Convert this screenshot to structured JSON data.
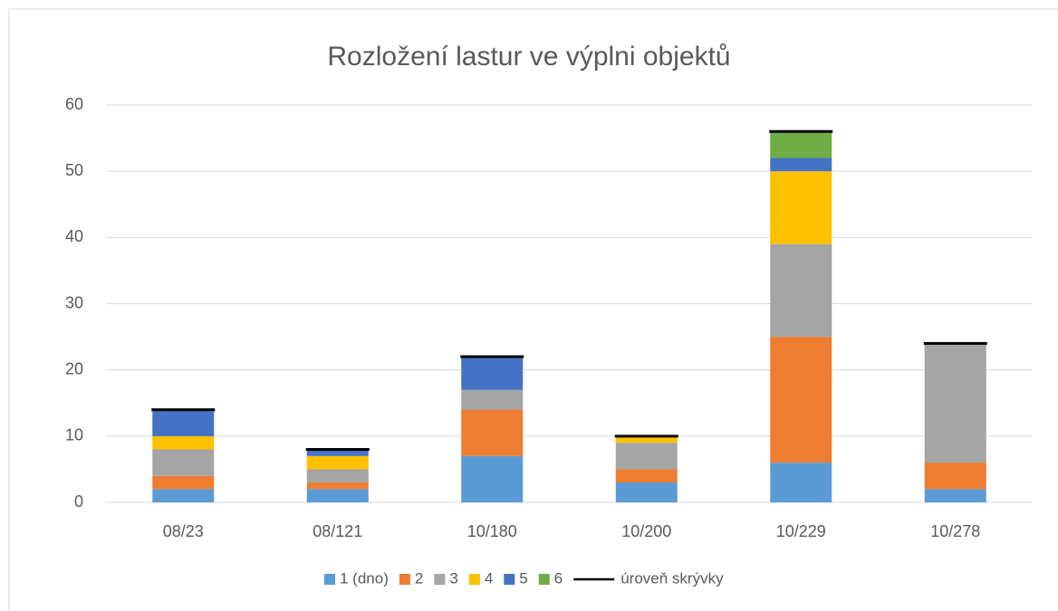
{
  "chart_data": {
    "type": "bar",
    "stacked": true,
    "title": "Rozložení lastur ve výplni objektů",
    "categories": [
      "08/23",
      "08/121",
      "10/180",
      "10/200",
      "10/229",
      "10/278"
    ],
    "series": [
      {
        "name": "1 (dno)",
        "color": "#5b9bd5",
        "values": [
          2,
          2,
          7,
          3,
          6,
          2
        ]
      },
      {
        "name": "2",
        "color": "#ed7d31",
        "values": [
          2,
          1,
          7,
          2,
          19,
          4
        ]
      },
      {
        "name": "3",
        "color": "#a5a5a5",
        "values": [
          4,
          2,
          3,
          4,
          14,
          18
        ]
      },
      {
        "name": "4",
        "color": "#ffc000",
        "values": [
          2,
          2,
          0,
          1,
          11,
          0
        ]
      },
      {
        "name": "5",
        "color": "#4472c4",
        "values": [
          4,
          1,
          5,
          0,
          2,
          0
        ]
      },
      {
        "name": "6",
        "color": "#70ad47",
        "values": [
          0,
          0,
          0,
          0,
          4,
          0
        ]
      },
      {
        "name": "úroveň skrývky",
        "color": "#000000",
        "type": "level",
        "values": [
          14,
          8,
          22,
          10,
          56,
          24
        ]
      }
    ],
    "ylim": [
      0,
      60
    ],
    "yticks": [
      0,
      10,
      20,
      30,
      40,
      50,
      60
    ],
    "grid": true,
    "legend": "bottom"
  }
}
